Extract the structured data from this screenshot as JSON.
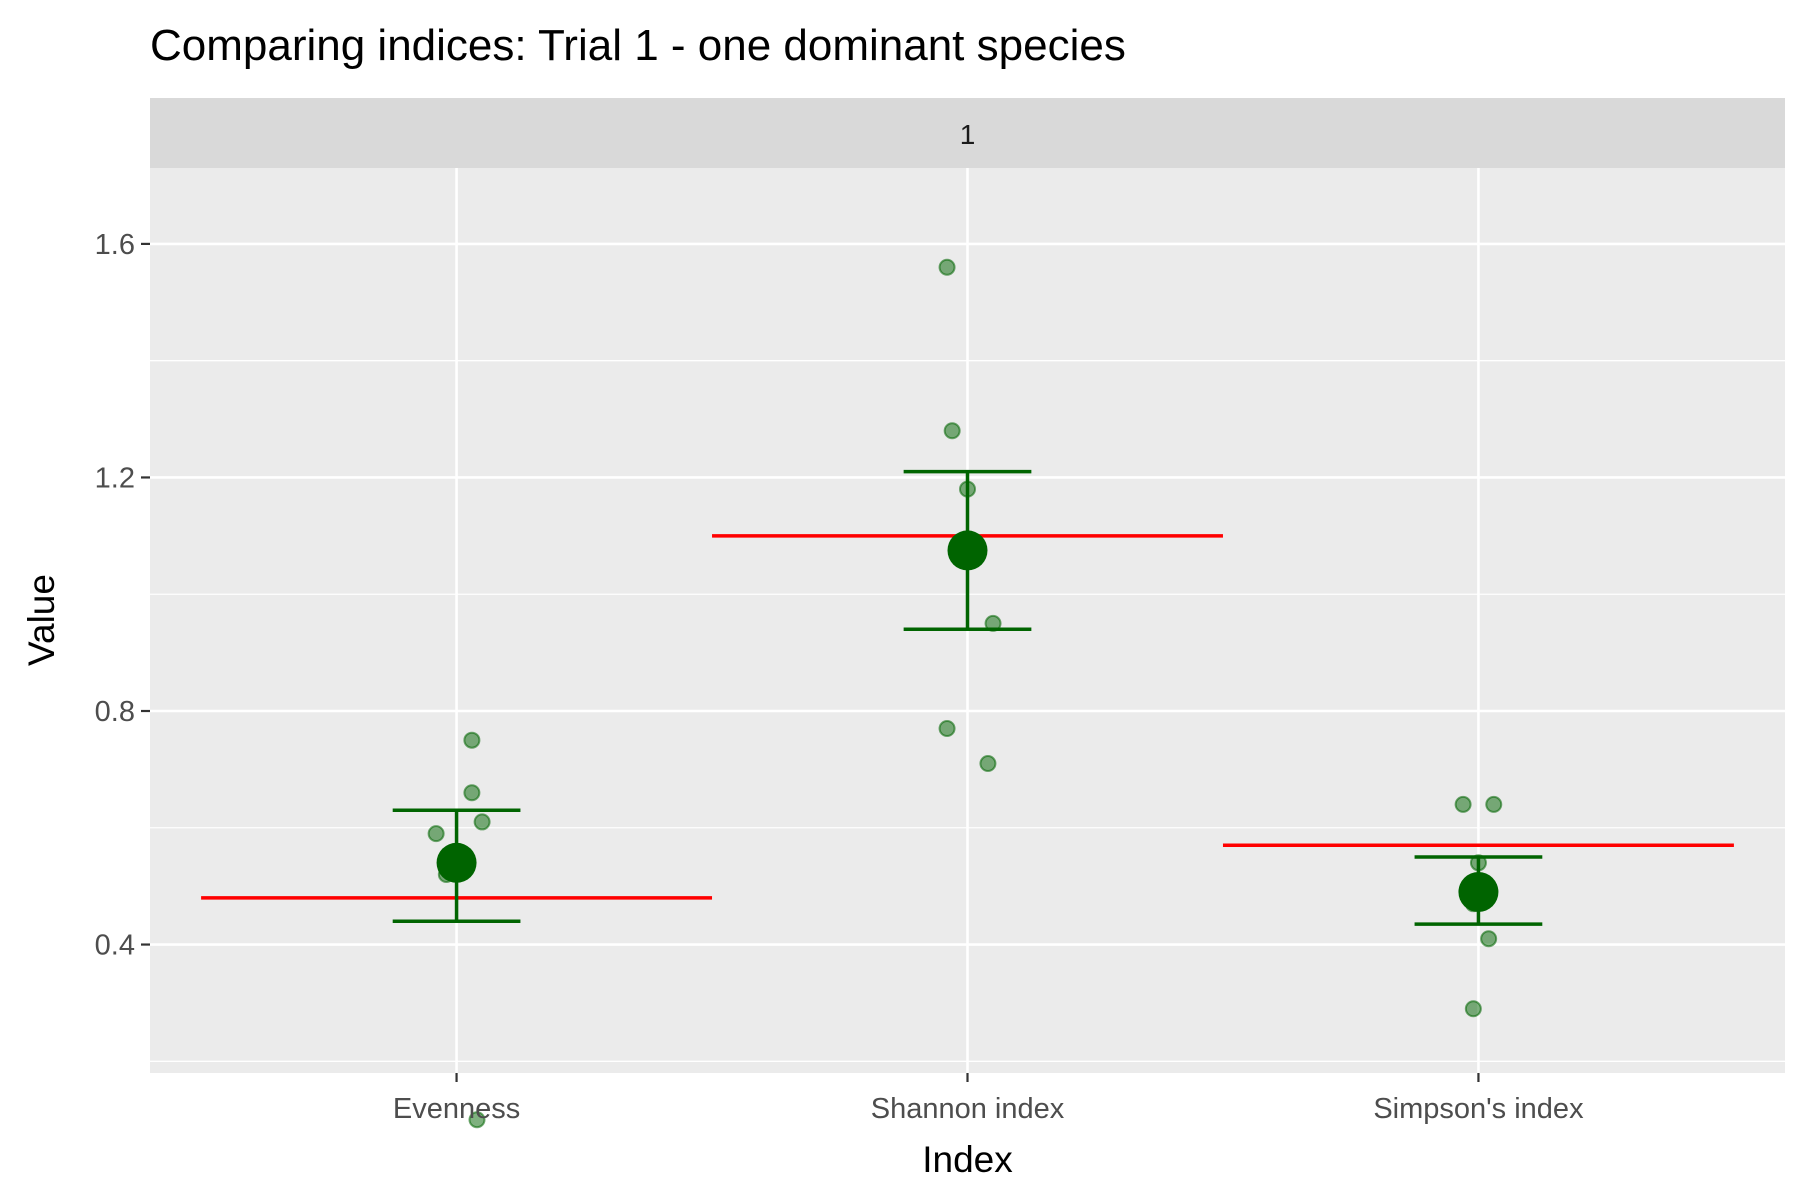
{
  "chart_data": {
    "type": "scatter",
    "title": "Comparing indices: Trial 1 - one dominant species",
    "facet_label": "1",
    "xlabel": "Index",
    "ylabel": "Value",
    "categories": [
      "Evenness",
      "Shannon index",
      "Simpson's index"
    ],
    "ylim": [
      0.18,
      1.73
    ],
    "yticks": [
      0.4,
      0.8,
      1.2,
      1.6
    ],
    "yticks_labels": [
      "0.4",
      "0.8",
      "1.2",
      "1.6"
    ],
    "grid": true,
    "points": [
      {
        "category": "Evenness",
        "jitter": 0.03,
        "y": 0.75
      },
      {
        "category": "Evenness",
        "jitter": 0.03,
        "y": 0.66
      },
      {
        "category": "Evenness",
        "jitter": 0.05,
        "y": 0.61
      },
      {
        "category": "Evenness",
        "jitter": -0.04,
        "y": 0.59
      },
      {
        "category": "Evenness",
        "jitter": -0.02,
        "y": 0.52
      },
      {
        "category": "Evenness",
        "jitter": 0.04,
        "y": 0.1
      },
      {
        "category": "Shannon index",
        "jitter": -0.04,
        "y": 1.56
      },
      {
        "category": "Shannon index",
        "jitter": -0.03,
        "y": 1.28
      },
      {
        "category": "Shannon index",
        "jitter": 0.0,
        "y": 1.18
      },
      {
        "category": "Shannon index",
        "jitter": 0.05,
        "y": 0.95
      },
      {
        "category": "Shannon index",
        "jitter": -0.04,
        "y": 0.77
      },
      {
        "category": "Shannon index",
        "jitter": 0.04,
        "y": 0.71
      },
      {
        "category": "Simpson's index",
        "jitter": -0.03,
        "y": 0.64
      },
      {
        "category": "Simpson's index",
        "jitter": 0.03,
        "y": 0.64
      },
      {
        "category": "Simpson's index",
        "jitter": 0.0,
        "y": 0.54
      },
      {
        "category": "Simpson's index",
        "jitter": -0.01,
        "y": 0.47
      },
      {
        "category": "Simpson's index",
        "jitter": 0.02,
        "y": 0.41
      },
      {
        "category": "Simpson's index",
        "jitter": -0.01,
        "y": 0.29
      }
    ],
    "means": [
      {
        "category": "Evenness",
        "mean": 0.54,
        "lower": 0.44,
        "upper": 0.63
      },
      {
        "category": "Shannon index",
        "mean": 1.075,
        "lower": 0.94,
        "upper": 1.21
      },
      {
        "category": "Simpson's index",
        "mean": 0.49,
        "lower": 0.435,
        "upper": 0.55
      }
    ],
    "reference_lines": [
      {
        "category": "Evenness",
        "y": 0.48
      },
      {
        "category": "Shannon index",
        "y": 1.1
      },
      {
        "category": "Simpson's index",
        "y": 0.57
      }
    ],
    "colors": {
      "points": "#006400",
      "mean": "#006400",
      "errorbar": "#006400",
      "reference": "#ff0000",
      "panel_background": "#ebebeb",
      "strip_background": "#d9d9d9",
      "grid": "#ffffff"
    }
  }
}
